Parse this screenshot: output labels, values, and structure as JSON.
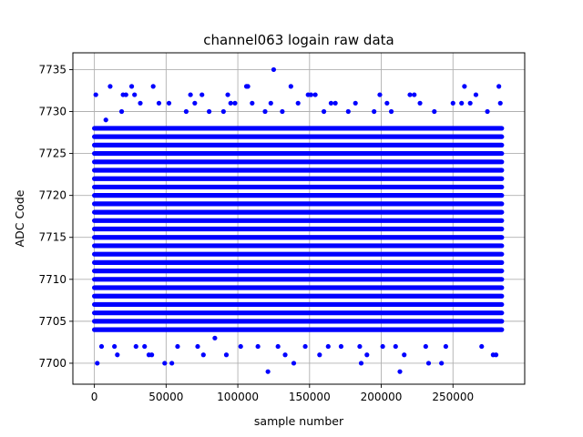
{
  "chart_data": {
    "type": "scatter",
    "title": "channel063 logain raw data",
    "xlabel": "sample number",
    "ylabel": "ADC Code",
    "xlim": [
      -15000,
      300000
    ],
    "ylim": [
      7697.5,
      7737
    ],
    "xticks": [
      0,
      50000,
      100000,
      150000,
      200000,
      250000
    ],
    "yticks": [
      7700,
      7705,
      7710,
      7715,
      7720,
      7725,
      7730,
      7735
    ],
    "grid": true,
    "marker_color": "#0000ff",
    "sample_range": [
      0,
      284000
    ],
    "dense_band": [
      7704,
      7728
    ],
    "series": [
      {
        "points": [
          [
            1000,
            7732
          ],
          [
            2000,
            7700
          ],
          [
            5000,
            7702
          ],
          [
            8000,
            7729
          ],
          [
            11000,
            7733
          ],
          [
            14000,
            7702
          ],
          [
            16000,
            7701
          ],
          [
            19000,
            7730
          ],
          [
            20000,
            7732
          ],
          [
            22000,
            7732
          ],
          [
            26000,
            7733
          ],
          [
            28000,
            7732
          ],
          [
            29000,
            7702
          ],
          [
            32000,
            7731
          ],
          [
            35000,
            7702
          ],
          [
            38000,
            7701
          ],
          [
            40000,
            7701
          ],
          [
            41000,
            7733
          ],
          [
            45000,
            7731
          ],
          [
            49000,
            7700
          ],
          [
            52000,
            7731
          ],
          [
            54000,
            7700
          ],
          [
            58000,
            7702
          ],
          [
            64000,
            7730
          ],
          [
            67000,
            7732
          ],
          [
            70000,
            7731
          ],
          [
            72000,
            7702
          ],
          [
            75000,
            7732
          ],
          [
            76000,
            7701
          ],
          [
            80000,
            7730
          ],
          [
            84000,
            7703
          ],
          [
            90000,
            7730
          ],
          [
            92000,
            7701
          ],
          [
            93000,
            7732
          ],
          [
            95000,
            7731
          ],
          [
            98000,
            7731
          ],
          [
            102000,
            7702
          ],
          [
            106000,
            7733
          ],
          [
            107000,
            7733
          ],
          [
            110000,
            7731
          ],
          [
            114000,
            7702
          ],
          [
            119000,
            7730
          ],
          [
            121000,
            7699
          ],
          [
            123000,
            7731
          ],
          [
            125000,
            7735
          ],
          [
            128000,
            7702
          ],
          [
            131000,
            7730
          ],
          [
            133000,
            7701
          ],
          [
            137000,
            7733
          ],
          [
            139000,
            7700
          ],
          [
            142000,
            7731
          ],
          [
            147000,
            7702
          ],
          [
            149000,
            7732
          ],
          [
            151000,
            7732
          ],
          [
            154000,
            7732
          ],
          [
            157000,
            7701
          ],
          [
            160000,
            7730
          ],
          [
            163000,
            7702
          ],
          [
            165000,
            7731
          ],
          [
            168000,
            7731
          ],
          [
            172000,
            7702
          ],
          [
            177000,
            7730
          ],
          [
            182000,
            7731
          ],
          [
            185000,
            7702
          ],
          [
            186000,
            7700
          ],
          [
            190000,
            7701
          ],
          [
            195000,
            7730
          ],
          [
            199000,
            7732
          ],
          [
            201000,
            7702
          ],
          [
            204000,
            7731
          ],
          [
            207000,
            7730
          ],
          [
            210000,
            7702
          ],
          [
            213000,
            7699
          ],
          [
            216000,
            7701
          ],
          [
            220000,
            7732
          ],
          [
            223000,
            7732
          ],
          [
            227000,
            7731
          ],
          [
            231000,
            7702
          ],
          [
            233000,
            7700
          ],
          [
            237000,
            7730
          ],
          [
            242000,
            7700
          ],
          [
            245000,
            7702
          ],
          [
            250000,
            7731
          ],
          [
            256000,
            7731
          ],
          [
            258000,
            7733
          ],
          [
            262000,
            7731
          ],
          [
            266000,
            7732
          ],
          [
            270000,
            7702
          ],
          [
            274000,
            7730
          ],
          [
            278000,
            7701
          ],
          [
            280000,
            7701
          ],
          [
            282000,
            7733
          ],
          [
            283000,
            7731
          ]
        ]
      }
    ]
  }
}
